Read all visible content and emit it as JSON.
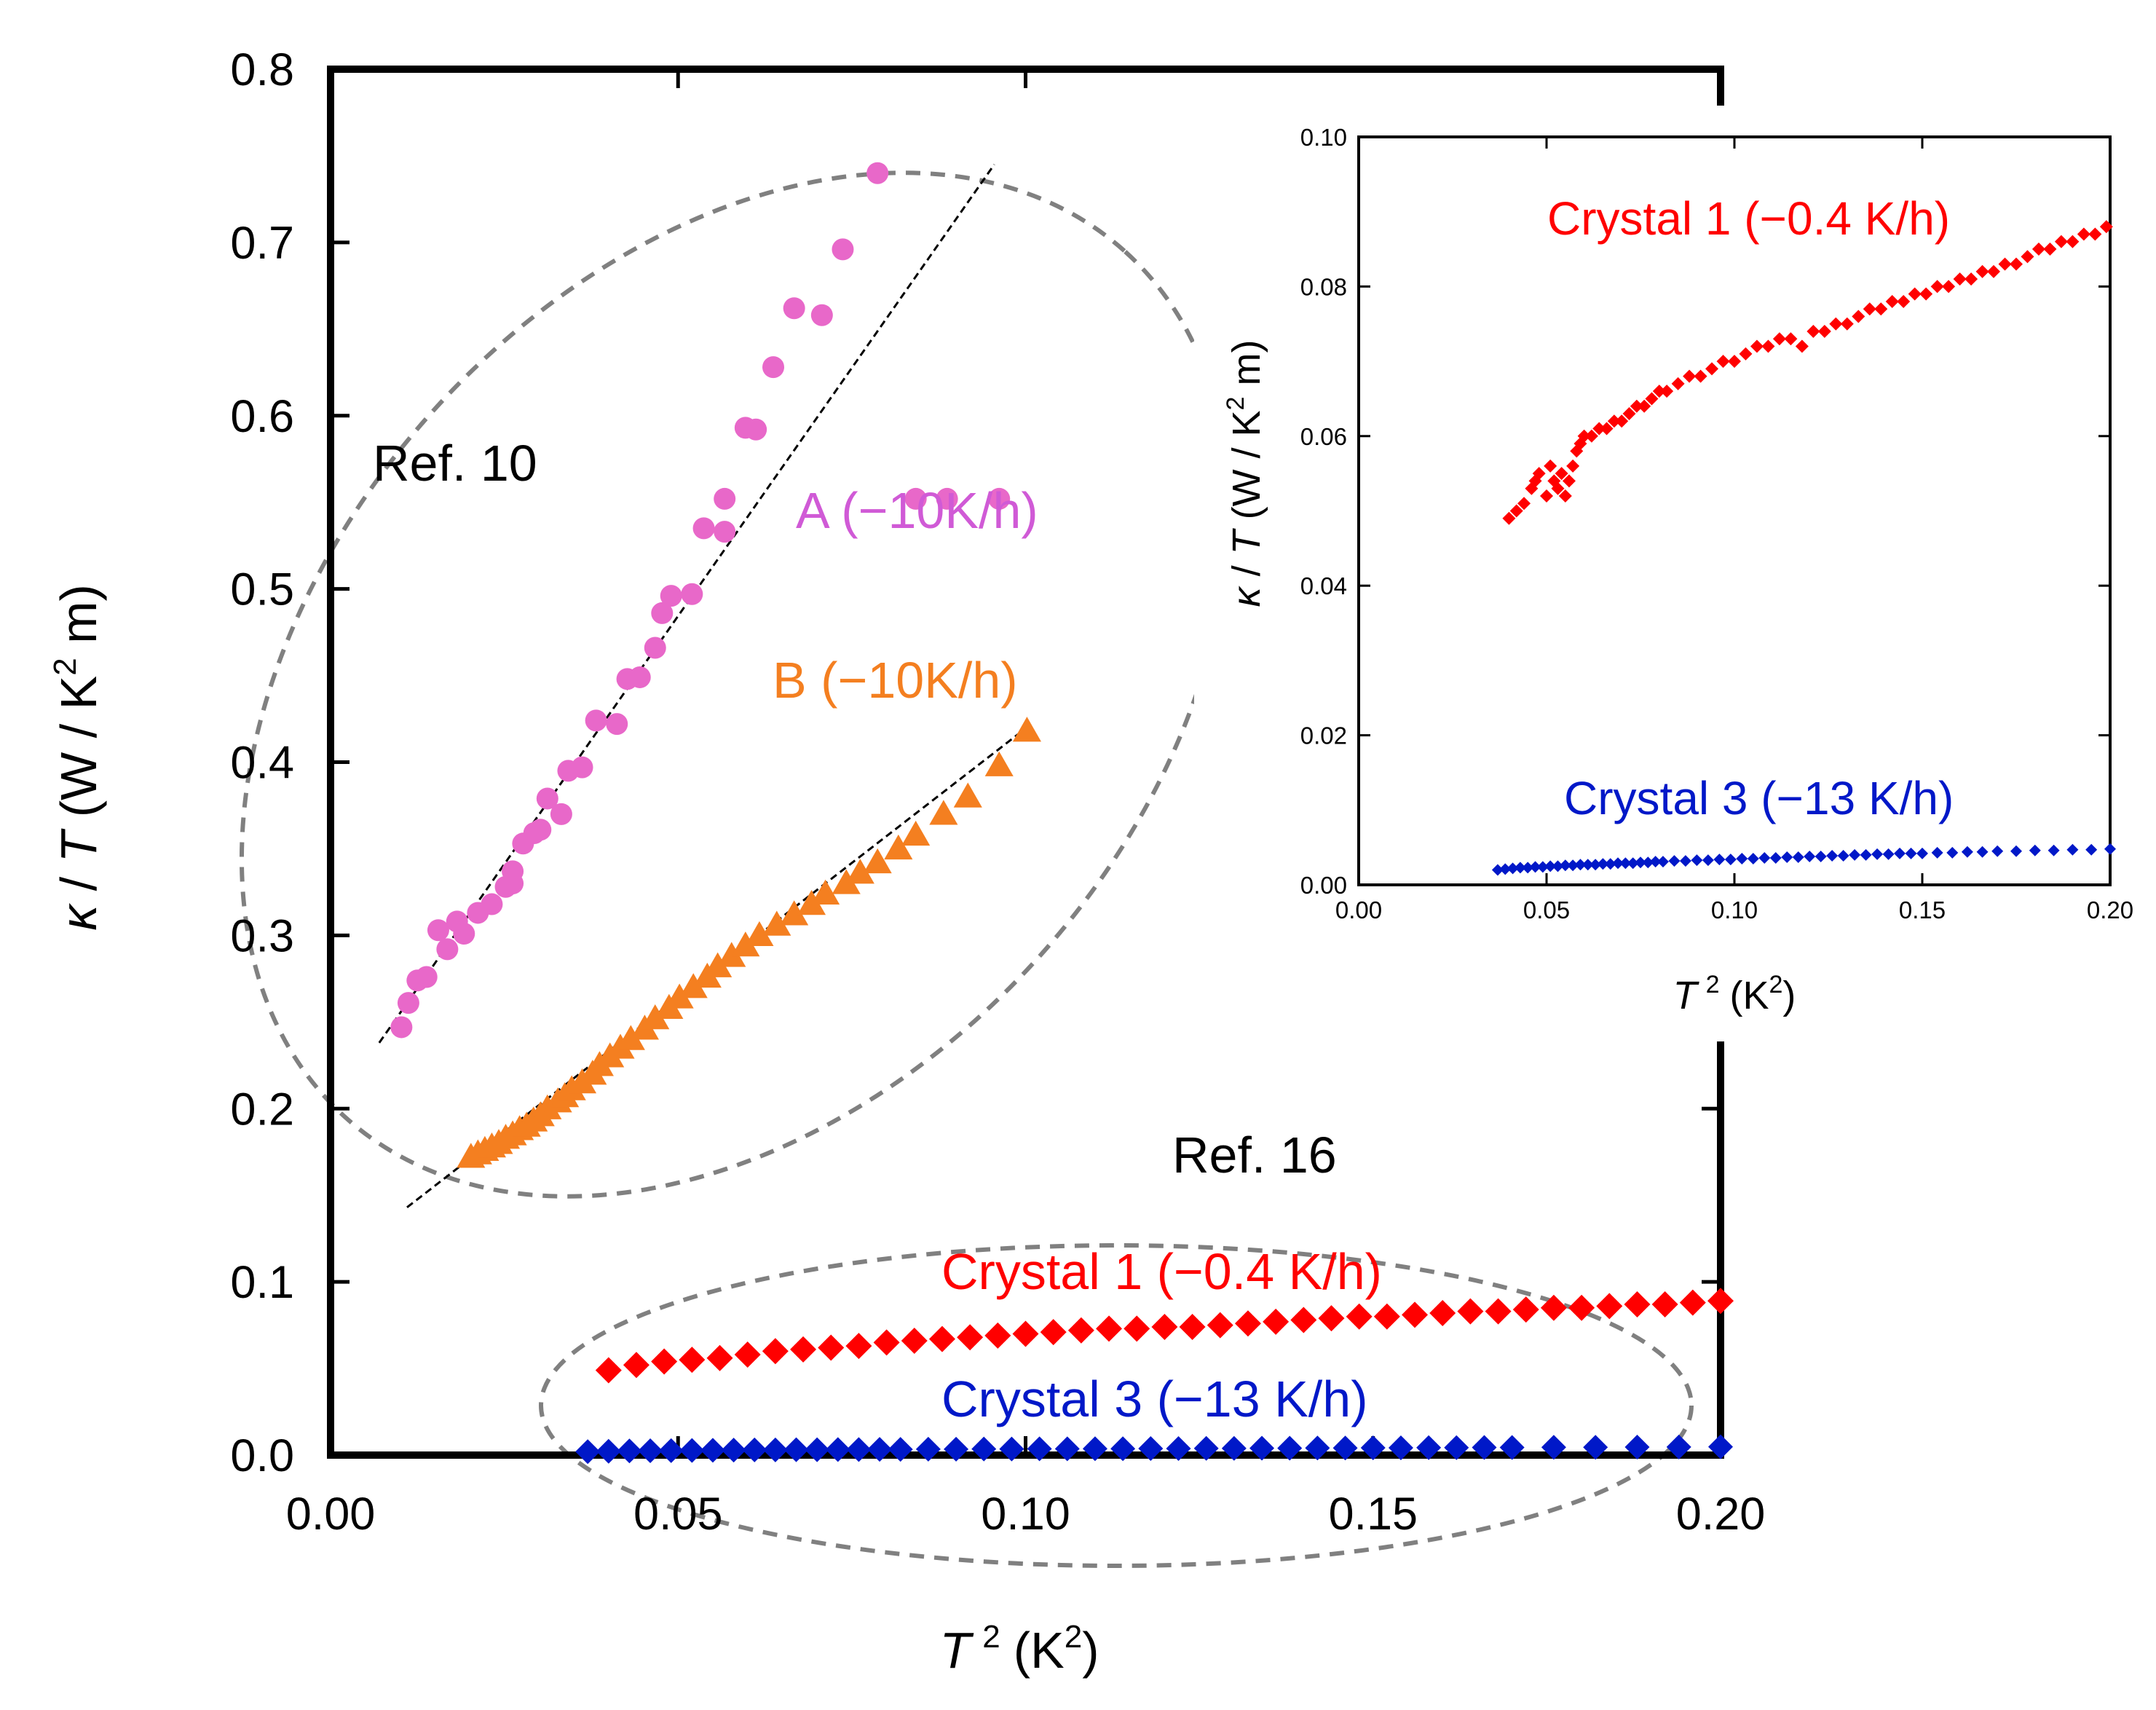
{
  "chart_data": [
    {
      "type": "scatter",
      "name": "main",
      "xlabel_var": "T",
      "xlabel_sup": "2",
      "xlabel_unit": "(K",
      "xlabel_unit_sup": "2",
      "xlabel_close": ")",
      "ylabel_kappa": "κ",
      "ylabel_slash": " / ",
      "ylabel_T": "T",
      "ylabel_unit": " (W / K",
      "ylabel_unit_sup": "2",
      "ylabel_unit_end": " m)",
      "xlim": [
        0.0,
        0.2
      ],
      "ylim": [
        0.0,
        0.8
      ],
      "xticks": [
        "0.00",
        "0.05",
        "0.10",
        "0.15",
        "0.20"
      ],
      "yticks": [
        "0.0",
        "0.1",
        "0.2",
        "0.3",
        "0.4",
        "0.5",
        "0.6",
        "0.7",
        "0.8"
      ],
      "colors": {
        "A": "#e868c9",
        "B": "#f47f20",
        "crystal1": "#ff0000",
        "crystal3": "#0018c8",
        "fit": "#000000",
        "ellipse": "#808080"
      },
      "series": [
        {
          "name": "A (−10K/h)",
          "marker": "circle",
          "x": [
            0.0102,
            0.0112,
            0.0125,
            0.0138,
            0.0155,
            0.0168,
            0.0182,
            0.0192,
            0.0212,
            0.0232,
            0.0252,
            0.0262,
            0.0262,
            0.0277,
            0.0293,
            0.0302,
            0.0312,
            0.0332,
            0.0342,
            0.0362,
            0.0382,
            0.0412,
            0.0427,
            0.0445,
            0.0467,
            0.0477,
            0.049,
            0.052,
            0.0537,
            0.0567,
            0.0567,
            0.0597,
            0.0612,
            0.0637,
            0.0667,
            0.0707,
            0.0737,
            0.0787,
            0.0842,
            0.0887,
            0.0962
          ],
          "y": [
            0.247,
            0.261,
            0.274,
            0.276,
            0.303,
            0.292,
            0.308,
            0.301,
            0.313,
            0.318,
            0.328,
            0.337,
            0.33,
            0.353,
            0.359,
            0.361,
            0.379,
            0.37,
            0.395,
            0.397,
            0.424,
            0.422,
            0.448,
            0.449,
            0.466,
            0.486,
            0.496,
            0.497,
            0.535,
            0.533,
            0.552,
            0.593,
            0.592,
            0.628,
            0.662,
            0.658,
            0.696,
            0.74,
            0.552,
            0.552,
            0.552
          ]
        },
        {
          "name": "B (−10K/h)",
          "marker": "triangle",
          "x": [
            0.0202,
            0.0212,
            0.0222,
            0.0232,
            0.0242,
            0.0252,
            0.0262,
            0.0272,
            0.0282,
            0.0292,
            0.0302,
            0.0312,
            0.0327,
            0.0337,
            0.0347,
            0.0362,
            0.0377,
            0.0387,
            0.0402,
            0.0417,
            0.0432,
            0.0452,
            0.0467,
            0.0487,
            0.0502,
            0.0522,
            0.0542,
            0.0557,
            0.0577,
            0.0597,
            0.0617,
            0.0642,
            0.0667,
            0.0692,
            0.0712,
            0.0742,
            0.0762,
            0.0787,
            0.0817,
            0.0842,
            0.0882,
            0.0917,
            0.0962,
            0.1002
          ],
          "y": [
            0.172,
            0.174,
            0.176,
            0.178,
            0.18,
            0.183,
            0.185,
            0.188,
            0.19,
            0.193,
            0.196,
            0.2,
            0.204,
            0.207,
            0.211,
            0.215,
            0.22,
            0.225,
            0.23,
            0.235,
            0.24,
            0.246,
            0.252,
            0.258,
            0.264,
            0.27,
            0.276,
            0.282,
            0.288,
            0.294,
            0.3,
            0.306,
            0.312,
            0.318,
            0.324,
            0.33,
            0.336,
            0.342,
            0.35,
            0.358,
            0.37,
            0.38,
            0.398,
            0.418
          ]
        },
        {
          "name": "Crystal 1 (−0.4 K/h)",
          "marker": "diamond",
          "x": [
            0.04,
            0.044,
            0.048,
            0.052,
            0.056,
            0.06,
            0.064,
            0.068,
            0.072,
            0.076,
            0.08,
            0.084,
            0.088,
            0.092,
            0.096,
            0.1,
            0.104,
            0.108,
            0.112,
            0.116,
            0.12,
            0.124,
            0.128,
            0.132,
            0.136,
            0.14,
            0.144,
            0.148,
            0.152,
            0.156,
            0.16,
            0.164,
            0.168,
            0.172,
            0.176,
            0.18,
            0.184,
            0.188,
            0.192,
            0.196,
            0.2
          ],
          "y": [
            0.049,
            0.052,
            0.054,
            0.055,
            0.056,
            0.058,
            0.06,
            0.061,
            0.062,
            0.063,
            0.065,
            0.066,
            0.067,
            0.068,
            0.069,
            0.07,
            0.071,
            0.072,
            0.073,
            0.073,
            0.074,
            0.074,
            0.075,
            0.076,
            0.077,
            0.078,
            0.079,
            0.08,
            0.08,
            0.081,
            0.082,
            0.083,
            0.083,
            0.084,
            0.085,
            0.085,
            0.086,
            0.087,
            0.087,
            0.088,
            0.089
          ]
        },
        {
          "name": "Crystal 3 (−13 K/h)",
          "marker": "diamond",
          "x": [
            0.037,
            0.04,
            0.043,
            0.046,
            0.049,
            0.052,
            0.055,
            0.058,
            0.061,
            0.064,
            0.067,
            0.07,
            0.073,
            0.076,
            0.079,
            0.082,
            0.086,
            0.09,
            0.094,
            0.098,
            0.102,
            0.106,
            0.11,
            0.114,
            0.118,
            0.122,
            0.126,
            0.13,
            0.134,
            0.138,
            0.142,
            0.146,
            0.15,
            0.154,
            0.158,
            0.162,
            0.166,
            0.17,
            0.176,
            0.182,
            0.188,
            0.194,
            0.2
          ],
          "y": [
            0.002,
            0.0022,
            0.0024,
            0.0025,
            0.0026,
            0.0027,
            0.0028,
            0.0029,
            0.003,
            0.003,
            0.0031,
            0.0031,
            0.0032,
            0.0032,
            0.0033,
            0.0033,
            0.0034,
            0.0034,
            0.0035,
            0.0035,
            0.0036,
            0.0036,
            0.0037,
            0.0037,
            0.0038,
            0.0038,
            0.0039,
            0.0039,
            0.004,
            0.004,
            0.0041,
            0.0041,
            0.0042,
            0.0042,
            0.0043,
            0.0043,
            0.0044,
            0.0044,
            0.0045,
            0.0045,
            0.0046,
            0.0047,
            0.0048
          ]
        }
      ],
      "fit_lines": [
        {
          "name": "A fit",
          "x": [
            0.007,
            0.0955
          ],
          "y": [
            0.238,
            0.745
          ]
        },
        {
          "name": "B fit",
          "x": [
            0.011,
            0.1005
          ],
          "y": [
            0.143,
            0.421
          ]
        }
      ],
      "annotations": {
        "ref10": "Ref. 10",
        "ref16": "Ref. 16",
        "A": "A (−10K/h)",
        "B": "B (−10K/h)",
        "crystal1": "Crystal 1 (−0.4 K/h)",
        "crystal3": "Crystal 3 (−13 K/h)"
      }
    },
    {
      "type": "scatter",
      "name": "inset",
      "xlim": [
        0.0,
        0.2
      ],
      "ylim": [
        0.0,
        0.1
      ],
      "xticks": [
        "0.00",
        "0.05",
        "0.10",
        "0.15",
        "0.20"
      ],
      "yticks": [
        "0.00",
        "0.02",
        "0.04",
        "0.06",
        "0.08",
        "0.10"
      ],
      "xlabel_var": "T",
      "xlabel_sup": "2",
      "xlabel_unit": "(K",
      "xlabel_unit_sup": "2",
      "xlabel_close": ")",
      "ylabel_kappa": "κ",
      "ylabel_slash": " / ",
      "ylabel_T": "T",
      "ylabel_unit": " (W / K",
      "ylabel_unit_sup": "2",
      "ylabel_unit_end": " m)",
      "series": [
        {
          "name": "Crystal 1 (−0.4 K/h)",
          "x": [
            0.04,
            0.042,
            0.044,
            0.046,
            0.047,
            0.048,
            0.05,
            0.051,
            0.052,
            0.053,
            0.054,
            0.055,
            0.056,
            0.057,
            0.058,
            0.059,
            0.06,
            0.062,
            0.064,
            0.066,
            0.068,
            0.07,
            0.072,
            0.074,
            0.076,
            0.078,
            0.08,
            0.082,
            0.085,
            0.088,
            0.091,
            0.094,
            0.097,
            0.1,
            0.103,
            0.106,
            0.109,
            0.112,
            0.115,
            0.118,
            0.121,
            0.124,
            0.127,
            0.13,
            0.133,
            0.136,
            0.139,
            0.142,
            0.145,
            0.148,
            0.151,
            0.154,
            0.157,
            0.16,
            0.163,
            0.166,
            0.169,
            0.172,
            0.175,
            0.178,
            0.181,
            0.184,
            0.187,
            0.19,
            0.193,
            0.196,
            0.199
          ],
          "y": [
            0.049,
            0.05,
            0.051,
            0.053,
            0.054,
            0.055,
            0.052,
            0.056,
            0.054,
            0.053,
            0.055,
            0.052,
            0.054,
            0.056,
            0.058,
            0.059,
            0.06,
            0.06,
            0.061,
            0.061,
            0.062,
            0.062,
            0.063,
            0.064,
            0.064,
            0.065,
            0.066,
            0.066,
            0.067,
            0.068,
            0.068,
            0.069,
            0.07,
            0.07,
            0.071,
            0.072,
            0.072,
            0.073,
            0.073,
            0.072,
            0.074,
            0.074,
            0.075,
            0.075,
            0.076,
            0.077,
            0.077,
            0.078,
            0.078,
            0.079,
            0.079,
            0.08,
            0.08,
            0.081,
            0.081,
            0.082,
            0.082,
            0.083,
            0.083,
            0.084,
            0.085,
            0.085,
            0.086,
            0.086,
            0.087,
            0.087,
            0.088
          ]
        },
        {
          "name": "Crystal 3 (−13 K/h)",
          "x": [
            0.037,
            0.039,
            0.041,
            0.043,
            0.045,
            0.047,
            0.049,
            0.051,
            0.053,
            0.055,
            0.057,
            0.059,
            0.061,
            0.063,
            0.065,
            0.067,
            0.069,
            0.071,
            0.073,
            0.075,
            0.077,
            0.079,
            0.081,
            0.084,
            0.087,
            0.09,
            0.093,
            0.096,
            0.099,
            0.102,
            0.105,
            0.108,
            0.111,
            0.114,
            0.117,
            0.12,
            0.123,
            0.126,
            0.129,
            0.132,
            0.135,
            0.138,
            0.141,
            0.144,
            0.147,
            0.15,
            0.154,
            0.158,
            0.162,
            0.166,
            0.17,
            0.175,
            0.18,
            0.185,
            0.19,
            0.195,
            0.2
          ],
          "y": [
            0.002,
            0.0021,
            0.0022,
            0.0023,
            0.0023,
            0.0024,
            0.0024,
            0.0025,
            0.0025,
            0.0026,
            0.0026,
            0.0027,
            0.0027,
            0.0027,
            0.0028,
            0.0028,
            0.0029,
            0.0029,
            0.0029,
            0.003,
            0.003,
            0.0031,
            0.0031,
            0.0032,
            0.0032,
            0.0033,
            0.0033,
            0.0034,
            0.0034,
            0.0035,
            0.0035,
            0.0036,
            0.0036,
            0.0037,
            0.0037,
            0.0038,
            0.0038,
            0.0039,
            0.0039,
            0.004,
            0.004,
            0.0041,
            0.0041,
            0.0042,
            0.0042,
            0.0042,
            0.0043,
            0.0043,
            0.0044,
            0.0044,
            0.0045,
            0.0045,
            0.0046,
            0.0046,
            0.0047,
            0.0047,
            0.0048
          ]
        }
      ],
      "annotations": {
        "crystal1": "Crystal 1 (−0.4 K/h)",
        "crystal3": "Crystal 3 (−13 K/h)"
      }
    }
  ]
}
